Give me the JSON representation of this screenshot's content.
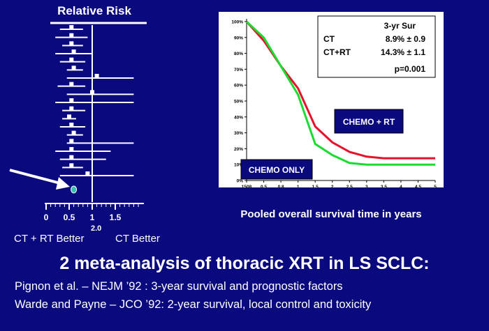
{
  "chart_data": [
    {
      "type": "scatter",
      "title": "Relative Risk",
      "x_ticks": [
        "0",
        "0.5",
        "1",
        "1.5"
      ],
      "x_tick_values": [
        0,
        0.5,
        1,
        1.5
      ],
      "x_tick_extra": "2.0",
      "xlim": [
        0,
        2.0
      ],
      "reference_line": 1,
      "left_label": "CT + RT Better",
      "right_label": "CT Better",
      "studies": [
        {
          "rr": 0.55,
          "lo": 0.3,
          "hi": 0.8
        },
        {
          "rr": 0.55,
          "lo": 0.2,
          "hi": 0.9
        },
        {
          "rr": 0.55,
          "lo": 0.35,
          "hi": 0.8
        },
        {
          "rr": 0.6,
          "lo": 0.2,
          "hi": 1.0
        },
        {
          "rr": 0.55,
          "lo": 0.3,
          "hi": 0.85
        },
        {
          "rr": 0.6,
          "lo": 0.45,
          "hi": 0.8
        },
        {
          "rr": 1.1,
          "lo": 0.45,
          "hi": 1.9
        },
        {
          "rr": 0.55,
          "lo": 0.25,
          "hi": 0.85
        },
        {
          "rr": 1.0,
          "lo": 0.45,
          "hi": 1.9
        },
        {
          "rr": 0.55,
          "lo": 0.2,
          "hi": 1.9
        },
        {
          "rr": 0.55,
          "lo": 0.35,
          "hi": 0.85
        },
        {
          "rr": 0.5,
          "lo": 0.35,
          "hi": 0.65
        },
        {
          "rr": 0.55,
          "lo": 0.3,
          "hi": 0.85
        },
        {
          "rr": 0.6,
          "lo": 0.45,
          "hi": 0.8
        },
        {
          "rr": 0.55,
          "lo": 0.45,
          "hi": 1.9
        },
        {
          "rr": 0.55,
          "lo": 0.2,
          "hi": 1.4
        },
        {
          "rr": 0.55,
          "lo": 0.3,
          "hi": 1.3
        },
        {
          "rr": 0.55,
          "lo": 0.35,
          "hi": 0.8
        },
        {
          "rr": 0.9,
          "lo": 0.3,
          "hi": 1.9
        }
      ],
      "pooled": {
        "rr": 0.6
      },
      "colors": {
        "line": "#ffffff",
        "pooled": "#3cbcb0",
        "arrow": "#ffffff"
      }
    },
    {
      "type": "line",
      "x_categories": [
        "1508",
        "0.5",
        "0.8",
        "1",
        "1.5",
        "2",
        "2.5",
        "3",
        "3.5",
        "4",
        "4.5",
        "5"
      ],
      "y_ticks": [
        "0%",
        "10%",
        "20%",
        "30%",
        "40%",
        "50%",
        "60%",
        "70%",
        "80%",
        "90%",
        "100%"
      ],
      "ylim": [
        0,
        100
      ],
      "xlabel": "Pooled overall survival time in years",
      "series": [
        {
          "name": "CHEMO + RT",
          "color": "#e8102a",
          "values": [
            100,
            88,
            72,
            58,
            34,
            24,
            18,
            15,
            14,
            14,
            14,
            14
          ]
        },
        {
          "name": "CHEMO ONLY",
          "color": "#18dc30",
          "values": [
            100,
            90,
            72,
            54,
            23,
            16,
            11,
            10,
            10,
            10,
            10,
            10
          ]
        }
      ],
      "stats_box": {
        "header": "3-yr Sur",
        "rows": [
          {
            "label": "CT",
            "value": "8.9% ± 0.9"
          },
          {
            "label": "CT+RT",
            "value": "14.3% ± 1.1"
          }
        ],
        "p_value": "p=0.001"
      }
    }
  ],
  "slide": {
    "title": "2 meta-analysis of thoracic XRT in LS SCLC:",
    "ref_1": "Pignon et al. – NEJM ’92 :   3-year survival and prognostic factors",
    "ref_2": "Warde and Payne – JCO ’92:  2-year survival, local control and toxicity"
  }
}
